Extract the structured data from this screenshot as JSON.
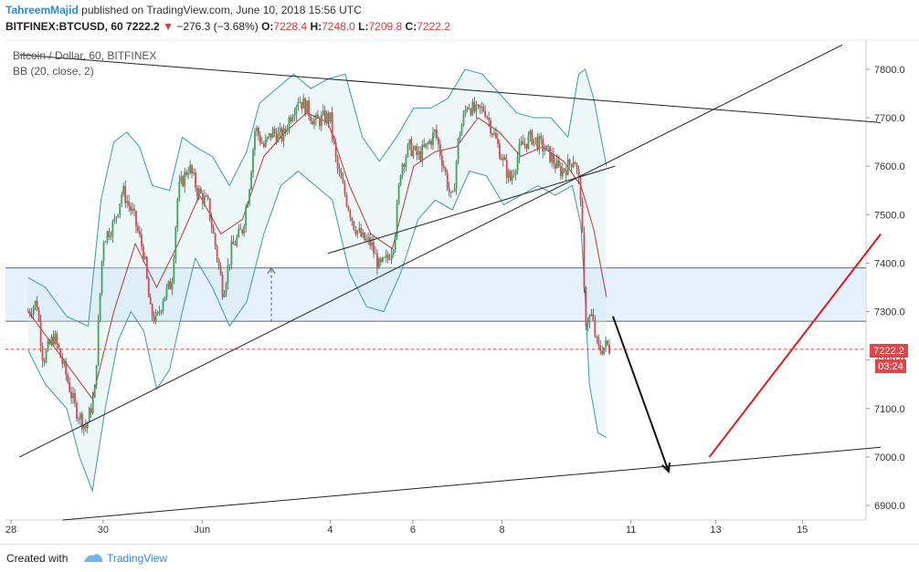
{
  "header": {
    "user": "TahreemMajid",
    "published_text": "published on TradingView.com, June 10, 2018 15:56 UTC",
    "symbol": "BITFINEX:BTCUSD, 60",
    "last": "7222.2",
    "arrow": "▼",
    "change": "−276.3 (−3.68%)",
    "o_label": "O:",
    "o_value": "7228.4",
    "h_label": "H:",
    "h_value": "7248.0",
    "l_label": "L:",
    "l_value": "7209.8",
    "c_label": "C:",
    "c_value": "7222.2"
  },
  "overlay": {
    "title": "Bitcoin / Dollar, 60, BITFINEX",
    "indicator": "BB (20, close, 2)"
  },
  "price_label": {
    "value": "7222.2",
    "countdown": "03:24"
  },
  "footer": {
    "created": "Created with",
    "brand": "TradingView"
  },
  "chart_data": {
    "type": "candlestick",
    "yaxis": {
      "min": 6870,
      "max": 7860,
      "ticks": [
        "7800.0",
        "7700.0",
        "7600.0",
        "7500.0",
        "7400.0",
        "7300.0",
        "7200.0",
        "7100.0",
        "7000.0",
        "6900.0"
      ],
      "tick_values": [
        7800,
        7700,
        7600,
        7500,
        7400,
        7300,
        7200,
        7100,
        7000,
        6900
      ]
    },
    "xaxis": {
      "ticks": [
        "28",
        "30",
        "Jun",
        "4",
        "6",
        "8",
        "11",
        "13",
        "15"
      ],
      "tick_positions": [
        -0.4,
        1.75,
        4.06,
        7.05,
        8.98,
        11.06,
        14.07,
        16.05,
        18.07
      ]
    },
    "close_segments": [
      [
        0,
        7300
      ],
      [
        0.2,
        7320
      ],
      [
        0.35,
        7200
      ],
      [
        0.6,
        7250
      ],
      [
        0.85,
        7180
      ],
      [
        1.1,
        7100
      ],
      [
        1.35,
        7060
      ],
      [
        1.55,
        7130
      ],
      [
        1.75,
        7450
      ],
      [
        2.0,
        7480
      ],
      [
        2.2,
        7550
      ],
      [
        2.45,
        7500
      ],
      [
        2.7,
        7420
      ],
      [
        2.85,
        7300
      ],
      [
        3.0,
        7280
      ],
      [
        3.15,
        7330
      ],
      [
        3.35,
        7360
      ],
      [
        3.5,
        7550
      ],
      [
        3.75,
        7600
      ],
      [
        3.95,
        7550
      ],
      [
        4.2,
        7520
      ],
      [
        4.4,
        7420
      ],
      [
        4.55,
        7340
      ],
      [
        4.75,
        7430
      ],
      [
        5.0,
        7470
      ],
      [
        5.15,
        7550
      ],
      [
        5.3,
        7680
      ],
      [
        5.5,
        7640
      ],
      [
        5.7,
        7670
      ],
      [
        5.95,
        7660
      ],
      [
        6.1,
        7700
      ],
      [
        6.3,
        7740
      ],
      [
        6.5,
        7720
      ],
      [
        6.7,
        7690
      ],
      [
        6.9,
        7700
      ],
      [
        7.05,
        7700
      ],
      [
        7.2,
        7600
      ],
      [
        7.4,
        7540
      ],
      [
        7.6,
        7480
      ],
      [
        7.8,
        7450
      ],
      [
        8.0,
        7440
      ],
      [
        8.2,
        7390
      ],
      [
        8.4,
        7410
      ],
      [
        8.55,
        7450
      ],
      [
        8.7,
        7600
      ],
      [
        8.9,
        7640
      ],
      [
        9.1,
        7620
      ],
      [
        9.3,
        7640
      ],
      [
        9.5,
        7670
      ],
      [
        9.7,
        7600
      ],
      [
        9.9,
        7520
      ],
      [
        10.05,
        7660
      ],
      [
        10.25,
        7730
      ],
      [
        10.45,
        7710
      ],
      [
        10.65,
        7720
      ],
      [
        10.85,
        7670
      ],
      [
        11.05,
        7620
      ],
      [
        11.25,
        7570
      ],
      [
        11.5,
        7640
      ],
      [
        11.75,
        7660
      ],
      [
        12.0,
        7640
      ],
      [
        12.2,
        7620
      ],
      [
        12.4,
        7590
      ],
      [
        12.6,
        7600
      ],
      [
        12.75,
        7620
      ],
      [
        12.9,
        7540
      ],
      [
        13.0,
        7280
      ],
      [
        13.15,
        7290
      ],
      [
        13.3,
        7220
      ],
      [
        13.5,
        7230
      ],
      [
        13.6,
        7222
      ]
    ],
    "bb_mid": [
      [
        0,
        7300
      ],
      [
        1.0,
        7180
      ],
      [
        1.5,
        7120
      ],
      [
        2.0,
        7300
      ],
      [
        2.5,
        7440
      ],
      [
        3.0,
        7350
      ],
      [
        3.5,
        7440
      ],
      [
        4.0,
        7540
      ],
      [
        4.5,
        7460
      ],
      [
        5.0,
        7490
      ],
      [
        5.5,
        7620
      ],
      [
        6.0,
        7670
      ],
      [
        6.5,
        7710
      ],
      [
        7.0,
        7690
      ],
      [
        7.5,
        7560
      ],
      [
        8.0,
        7460
      ],
      [
        8.5,
        7430
      ],
      [
        9.0,
        7600
      ],
      [
        9.5,
        7630
      ],
      [
        10.0,
        7640
      ],
      [
        10.5,
        7700
      ],
      [
        11.0,
        7670
      ],
      [
        11.5,
        7620
      ],
      [
        12.0,
        7640
      ],
      [
        12.5,
        7610
      ],
      [
        12.9,
        7560
      ],
      [
        13.2,
        7470
      ],
      [
        13.5,
        7330
      ]
    ],
    "bb_upper": [
      [
        0,
        7370
      ],
      [
        0.4,
        7350
      ],
      [
        0.9,
        7290
      ],
      [
        1.4,
        7270
      ],
      [
        1.7,
        7530
      ],
      [
        2.0,
        7650
      ],
      [
        2.3,
        7670
      ],
      [
        2.6,
        7640
      ],
      [
        2.9,
        7560
      ],
      [
        3.3,
        7550
      ],
      [
        3.6,
        7660
      ],
      [
        3.9,
        7640
      ],
      [
        4.3,
        7620
      ],
      [
        4.7,
        7560
      ],
      [
        5.1,
        7630
      ],
      [
        5.4,
        7730
      ],
      [
        5.8,
        7760
      ],
      [
        6.2,
        7790
      ],
      [
        6.6,
        7760
      ],
      [
        7.0,
        7780
      ],
      [
        7.4,
        7790
      ],
      [
        7.8,
        7660
      ],
      [
        8.2,
        7610
      ],
      [
        8.6,
        7660
      ],
      [
        9.0,
        7720
      ],
      [
        9.4,
        7720
      ],
      [
        9.8,
        7740
      ],
      [
        10.2,
        7800
      ],
      [
        10.6,
        7790
      ],
      [
        11.0,
        7750
      ],
      [
        11.4,
        7710
      ],
      [
        11.8,
        7700
      ],
      [
        12.2,
        7700
      ],
      [
        12.6,
        7660
      ],
      [
        12.85,
        7790
      ],
      [
        13.0,
        7800
      ],
      [
        13.2,
        7740
      ],
      [
        13.5,
        7600
      ]
    ],
    "bb_lower": [
      [
        0,
        7220
      ],
      [
        0.4,
        7150
      ],
      [
        0.9,
        7100
      ],
      [
        1.2,
        7000
      ],
      [
        1.5,
        6930
      ],
      [
        1.8,
        7100
      ],
      [
        2.1,
        7240
      ],
      [
        2.4,
        7300
      ],
      [
        2.7,
        7260
      ],
      [
        3.0,
        7140
      ],
      [
        3.3,
        7180
      ],
      [
        3.6,
        7300
      ],
      [
        3.9,
        7410
      ],
      [
        4.3,
        7350
      ],
      [
        4.7,
        7270
      ],
      [
        5.1,
        7320
      ],
      [
        5.5,
        7460
      ],
      [
        5.9,
        7560
      ],
      [
        6.3,
        7590
      ],
      [
        6.7,
        7560
      ],
      [
        7.1,
        7530
      ],
      [
        7.5,
        7380
      ],
      [
        7.9,
        7310
      ],
      [
        8.3,
        7300
      ],
      [
        8.7,
        7380
      ],
      [
        9.1,
        7490
      ],
      [
        9.5,
        7530
      ],
      [
        9.9,
        7510
      ],
      [
        10.3,
        7590
      ],
      [
        10.7,
        7580
      ],
      [
        11.1,
        7520
      ],
      [
        11.5,
        7540
      ],
      [
        11.9,
        7560
      ],
      [
        12.3,
        7540
      ],
      [
        12.7,
        7560
      ],
      [
        12.9,
        7480
      ],
      [
        13.0,
        7330
      ],
      [
        13.1,
        7150
      ],
      [
        13.3,
        7050
      ],
      [
        13.5,
        7040
      ]
    ],
    "band_zone": {
      "from": 7280,
      "to": 7390
    },
    "current_price": 7222.2,
    "trendlines": [
      {
        "from": [
          -0.2,
          7000
        ],
        "to": [
          19.0,
          7850
        ],
        "color": "#222222"
      },
      {
        "from": [
          -0.2,
          7830
        ],
        "to": [
          19.9,
          7690
        ],
        "color": "#222222"
      },
      {
        "from": [
          7.0,
          7420
        ],
        "to": [
          13.7,
          7600
        ],
        "color": "#222222"
      },
      {
        "from": [
          0.8,
          6870
        ],
        "to": [
          19.9,
          7020
        ],
        "color": "#222222"
      }
    ],
    "arrows": [
      {
        "from": [
          13.65,
          7290
        ],
        "to": [
          14.95,
          6970
        ],
        "color": "#111111"
      },
      {
        "from": [
          15.9,
          7000
        ],
        "to": [
          19.9,
          7460
        ],
        "color": "#e3191c"
      }
    ]
  }
}
